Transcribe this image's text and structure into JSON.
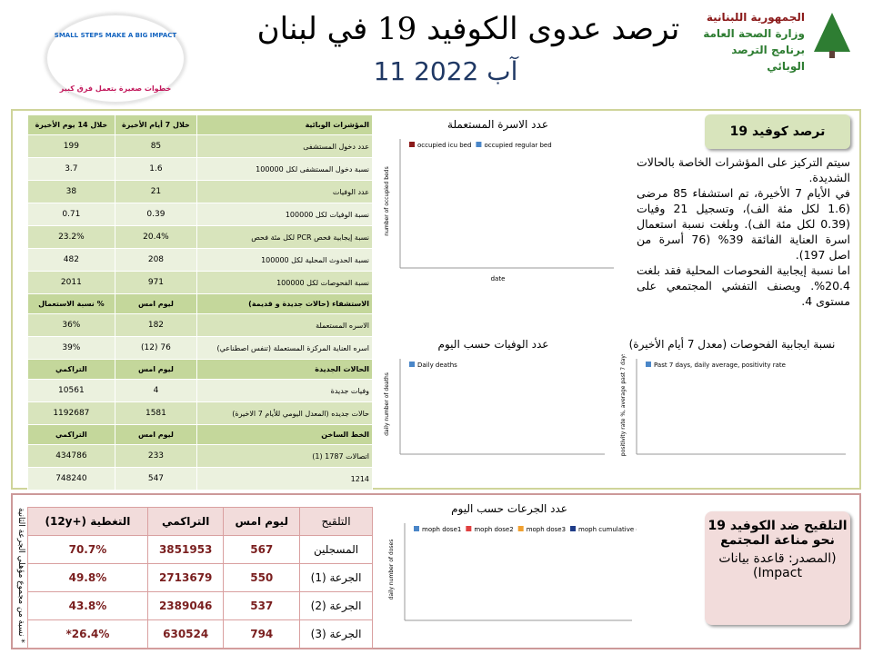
{
  "header": {
    "title": "ترصد عدوى الكوفيد 19 في لبنان",
    "date": "11 آب 2022",
    "ministry": [
      "الجمهورية اللبنانية",
      "وزارة الصحة العامة",
      "برنامج الترصد الوبائي"
    ],
    "campaign": [
      "SMALL STEPS MAKE A BIG IMPACT",
      "خطوات صغيرة بتعمل فرق كبير"
    ]
  },
  "covid_table": {
    "sections": [
      {
        "header": [
          "المؤشرات الوبائية",
          "خلال 7 أيام الأخيرة",
          "خلال 14 يوم الأخيرة"
        ],
        "rows": [
          [
            "عدد دخول المستشفى",
            "85",
            "199"
          ],
          [
            "نسبة دخول المستشفى لكل 100000",
            "1.6",
            "3.7"
          ],
          [
            "عدد الوفيات",
            "21",
            "38"
          ],
          [
            "نسبة الوفيات لكل 100000",
            "0.39",
            "0.71"
          ],
          [
            "نسبة إيجابية فحص PCR لكل مئة فحص",
            "20.4%",
            "23.2%"
          ],
          [
            "نسبة الحدوث المحلية لكل 100000",
            "208",
            "482"
          ],
          [
            "نسبة الفحوصات لكل 100000",
            "971",
            "2011"
          ]
        ]
      },
      {
        "header": [
          "الاستشفاء (حالات جديدة و قديمة)",
          "ليوم امس",
          "% نسبة الاستعمال"
        ],
        "rows": [
          [
            "الاسره المستعملة",
            "182",
            "36%"
          ],
          [
            "اسره العناية المركزة المستعملة (تنفس اصطناعي)",
            "76 (12)",
            "39%"
          ]
        ]
      },
      {
        "header": [
          "الحالات الجديدة",
          "ليوم امس",
          "التراكمي"
        ],
        "rows": [
          [
            "وفيات جديدة",
            "4",
            "10561"
          ],
          [
            "حالات جديده (المعدل اليومي للأيام 7 الاخيرة)",
            "1581",
            "1192687"
          ]
        ]
      },
      {
        "header": [
          "الخط الساخن",
          "ليوم امس",
          "التراكمي"
        ],
        "rows": [
          [
            "اتصالات 1787 (1)",
            "233",
            "434786"
          ],
          [
            "1214",
            "547",
            "748240"
          ]
        ]
      }
    ]
  },
  "summary": {
    "title": "ترصد كوفيد 19",
    "paragraphs": [
      "سيتم التركيز على المؤشرات الخاصة بالحالات الشديدة.",
      "في الأيام 7 الأخيرة، تم استشفاء 85 مرضى (1.6 لكل مئة الف)، وتسجيل 21 وفيات (0.39 لكل مئة الف). وبلغت نسبة استعمال اسرة العناية الفائقة 39% (76 أسرة من اصل 197).",
      "اما نسبة إيجابية الفحوصات المحلية فقد بلغت 20.4%. ويصنف التفشي المجتمعي على مستوى 4."
    ]
  },
  "charts": [
    {
      "caption": "عدد الاسرة المستعملة",
      "legend": [
        "occupied icu bed",
        "occupied regular bed"
      ],
      "x_label": "date",
      "y_label": "number of occupied beds"
    },
    {
      "caption": "عدد الوفيات حسب اليوم",
      "legend": [
        "Daily deaths"
      ],
      "x_label": "",
      "y_label": "daily number of deaths"
    },
    {
      "caption": "نسبة ايجابية الفحوصات (معدل 7 أيام الأخيرة)",
      "legend": [
        "Past 7 days, daily average, positivity rate"
      ],
      "x_label": "",
      "y_label": "positivity rate %, average past 7 days"
    },
    {
      "caption": "عدد الجرعات حسب اليوم",
      "legend": [
        "moph dose1",
        "moph dose2",
        "moph dose3",
        "moph cumulative dose"
      ],
      "x_label": "",
      "y_label": "daily number of doses"
    }
  ],
  "vaccine_table": {
    "header": [
      "التلقيح",
      "ليوم امس",
      "التراكمي",
      "التغطية (+12y)"
    ],
    "rows": [
      [
        "المسجلين",
        "567",
        "3851953",
        "70.7%"
      ],
      [
        "الجرعة (1)",
        "550",
        "2713679",
        "49.8%"
      ],
      [
        "الجرعة (2)",
        "537",
        "2389046",
        "43.8%"
      ],
      [
        "الجرعة (3)",
        "794",
        "630524",
        "26.4%*"
      ]
    ],
    "note": "* نسبة من مجموع مؤهلي الجرعة الثانية"
  },
  "vaccine_box": {
    "title": "التلقيح ضد الكوفيد 19 نحو مناعة المجتمع",
    "source": "(المصدر: قاعدة بيانات Impact)"
  }
}
